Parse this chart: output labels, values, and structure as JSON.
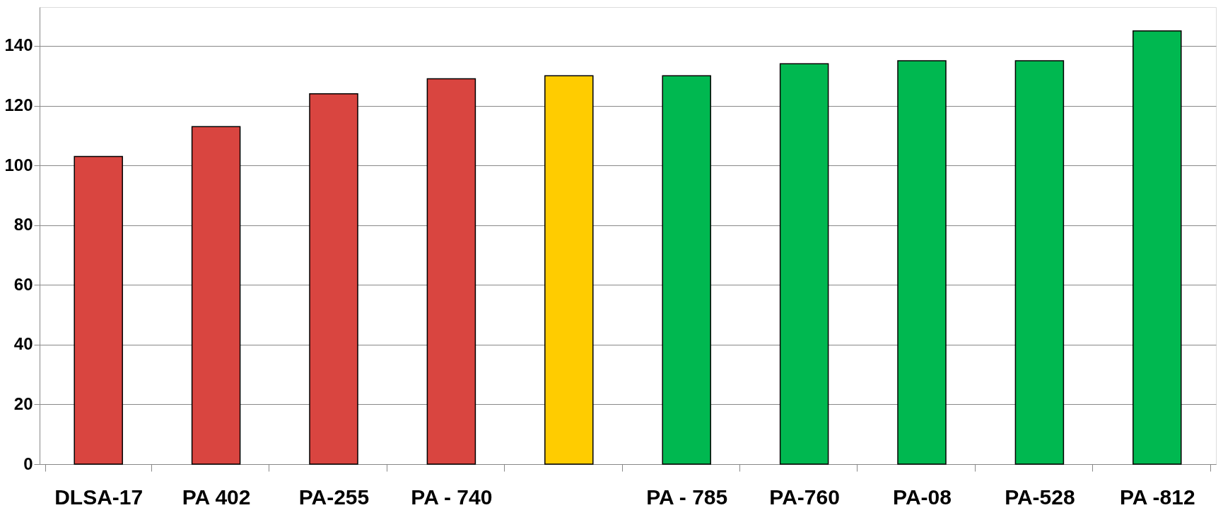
{
  "chart_data": {
    "type": "bar",
    "categories": [
      "DLSA-17",
      "PA 402",
      "PA-255",
      "PA - 740",
      null,
      "PA - 785",
      "PA-760",
      "PA-08",
      "PA-528",
      "PA -812"
    ],
    "values": [
      103,
      113,
      124,
      129,
      130,
      130,
      134,
      135,
      135,
      145
    ],
    "colors": [
      "#d94540",
      "#d94540",
      "#d94540",
      "#d94540",
      "#ffcc00",
      "#00b850",
      "#00b850",
      "#00b850",
      "#00b850",
      "#00b850"
    ],
    "ylim": [
      0,
      153
    ],
    "yticks": [
      0,
      20,
      40,
      60,
      80,
      100,
      120,
      140
    ],
    "grid": "y"
  }
}
